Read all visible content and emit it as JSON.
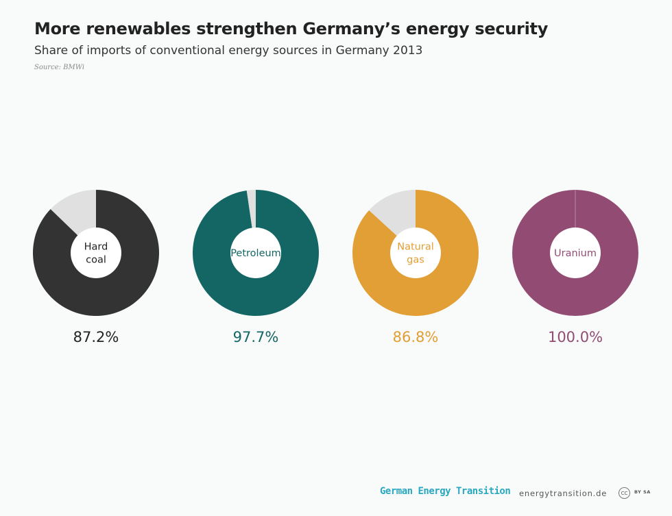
{
  "header": {
    "title": "More renewables strengthen Germany’s energy security",
    "subtitle": "Share of imports of conventional energy sources in Germany 2013",
    "source": "Source: BMWi"
  },
  "chart_data": {
    "type": "pie",
    "variant": "donut",
    "title": "More renewables strengthen Germany’s energy security",
    "subtitle": "Share of imports of conventional energy sources in Germany 2013",
    "unit": "%",
    "remainder_color": "#e0e0e0",
    "series": [
      {
        "name": "Hard coal",
        "label_lines": [
          "Hard",
          "coal"
        ],
        "value": 87.2,
        "value_label": "87.2%",
        "color": "#333333"
      },
      {
        "name": "Petroleum",
        "label_lines": [
          "Petroleum"
        ],
        "value": 97.7,
        "value_label": "97.7%",
        "color": "#136663"
      },
      {
        "name": "Natural gas",
        "label_lines": [
          "Natural",
          "gas"
        ],
        "value": 86.8,
        "value_label": "86.8%",
        "color": "#e19f35"
      },
      {
        "name": "Uranium",
        "label_lines": [
          "Uranium"
        ],
        "value": 100.0,
        "value_label": "100.0%",
        "color": "#924c74"
      }
    ]
  },
  "footer": {
    "brand": "German Energy Transition",
    "url": "energytransition.de",
    "cc_badge": "CC",
    "cc_terms": "BY SA"
  }
}
